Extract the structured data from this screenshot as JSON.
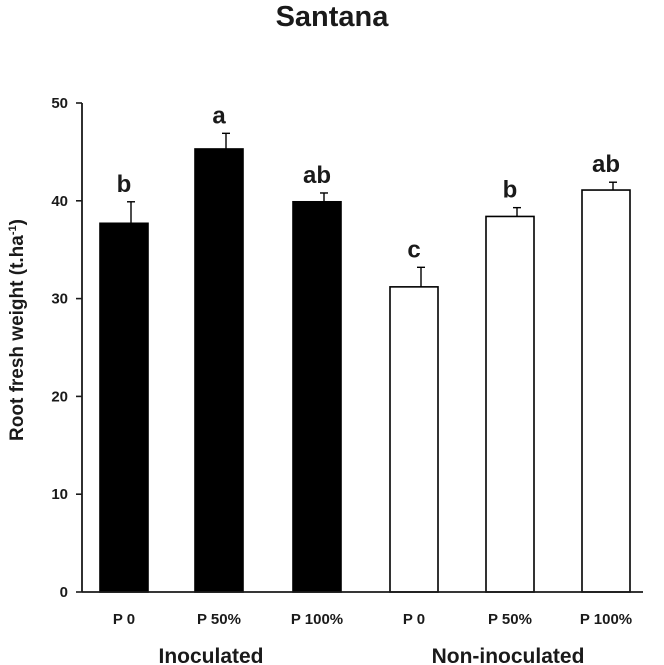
{
  "chart_data": {
    "type": "bar",
    "title": "Santana",
    "ylabel": "Root fresh weight (t.ha",
    "ylabel_superscript": "-1",
    "ylabel_suffix": ")",
    "xlabel": "",
    "ylim": [
      0,
      50
    ],
    "yticks": [
      0,
      10,
      20,
      30,
      40,
      50
    ],
    "grid": false,
    "categories": [
      "P 0",
      "P 50%",
      "P 100%",
      "P 0",
      "P 50%",
      "P 100%"
    ],
    "groups": [
      {
        "name": "Inoculated",
        "indices": [
          0,
          1,
          2
        ],
        "fill": "#000000"
      },
      {
        "name": "Non-inoculated",
        "indices": [
          3,
          4,
          5
        ],
        "fill": "#ffffff"
      }
    ],
    "values": [
      37.7,
      45.3,
      39.9,
      31.2,
      38.4,
      41.1
    ],
    "errors": [
      2.2,
      1.6,
      0.9,
      2.0,
      0.9,
      0.8
    ],
    "significance_letters": [
      "b",
      "a",
      "ab",
      "c",
      "b",
      "ab"
    ]
  },
  "colors": {
    "axis": "#1a1a1a",
    "inoculated_bar": "#000000",
    "non_inoculated_bar": "#ffffff"
  }
}
